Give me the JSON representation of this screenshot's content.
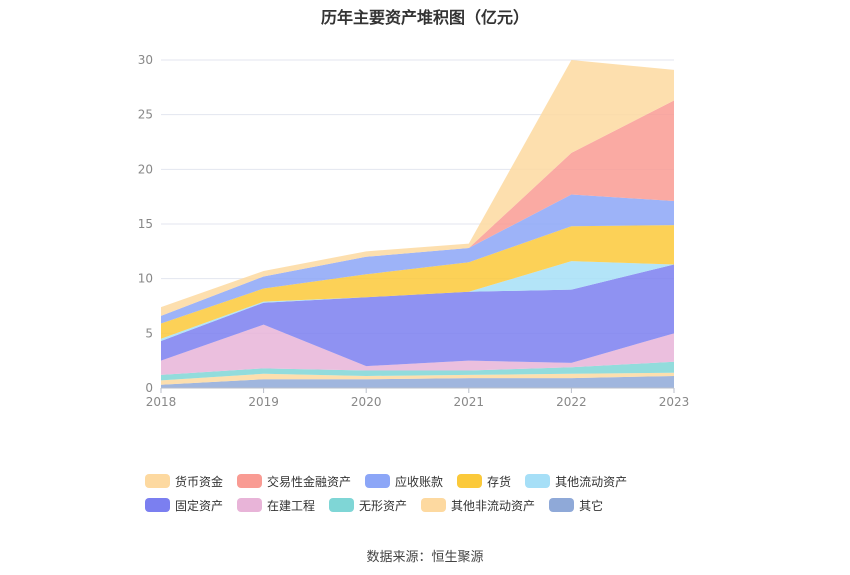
{
  "chart_data": {
    "type": "area",
    "stacked": true,
    "title": "历年主要资产堆积图（亿元）",
    "categories": [
      "2018",
      "2019",
      "2020",
      "2021",
      "2022",
      "2023"
    ],
    "ylim": [
      0,
      30
    ],
    "yticks": [
      0,
      5,
      10,
      15,
      20,
      25,
      30
    ],
    "grid": true,
    "legend_position": "bottom",
    "series": [
      {
        "name": "其它",
        "color": "#8fa9d8",
        "values": [
          0.3,
          0.8,
          0.8,
          0.9,
          0.9,
          1.1
        ]
      },
      {
        "name": "其他非流动资产",
        "color": "#fdd9a0",
        "values": [
          0.4,
          0.5,
          0.3,
          0.3,
          0.4,
          0.3
        ]
      },
      {
        "name": "无形资产",
        "color": "#7fd6d6",
        "values": [
          0.5,
          0.5,
          0.5,
          0.4,
          0.6,
          1.0
        ]
      },
      {
        "name": "在建工程",
        "color": "#e8b4d8",
        "values": [
          1.3,
          4.0,
          0.4,
          0.9,
          0.4,
          2.6
        ]
      },
      {
        "name": "固定资产",
        "color": "#7b7ff0",
        "values": [
          1.8,
          2.0,
          6.3,
          6.3,
          6.7,
          6.3
        ]
      },
      {
        "name": "其他流动资产",
        "color": "#a6dff7",
        "values": [
          0.2,
          0.1,
          0.0,
          0.0,
          2.6,
          0.0
        ]
      },
      {
        "name": "存货",
        "color": "#fbc93a",
        "values": [
          1.4,
          1.2,
          2.1,
          2.7,
          3.2,
          3.6
        ]
      },
      {
        "name": "应收账款",
        "color": "#8ca6f7",
        "values": [
          0.7,
          1.1,
          1.6,
          1.3,
          2.9,
          2.2
        ]
      },
      {
        "name": "交易性金融资产",
        "color": "#f99b93",
        "values": [
          0.0,
          0.0,
          0.0,
          0.0,
          3.8,
          9.2
        ]
      },
      {
        "name": "货币资金",
        "color": "#fdd9a0",
        "values": [
          0.8,
          0.5,
          0.5,
          0.4,
          8.5,
          2.8
        ]
      }
    ]
  },
  "legend": [
    {
      "name": "货币资金",
      "color": "#fdd9a0"
    },
    {
      "name": "交易性金融资产",
      "color": "#f99b93"
    },
    {
      "name": "应收账款",
      "color": "#8ca6f7"
    },
    {
      "name": "存货",
      "color": "#fbc93a"
    },
    {
      "name": "其他流动资产",
      "color": "#a6dff7"
    },
    {
      "name": "固定资产",
      "color": "#7b7ff0"
    },
    {
      "name": "在建工程",
      "color": "#e8b4d8"
    },
    {
      "name": "无形资产",
      "color": "#7fd6d6"
    },
    {
      "name": "其他非流动资产",
      "color": "#fdd9a0"
    },
    {
      "name": "其它",
      "color": "#8fa9d8"
    }
  ],
  "source": "数据来源：恒生聚源"
}
